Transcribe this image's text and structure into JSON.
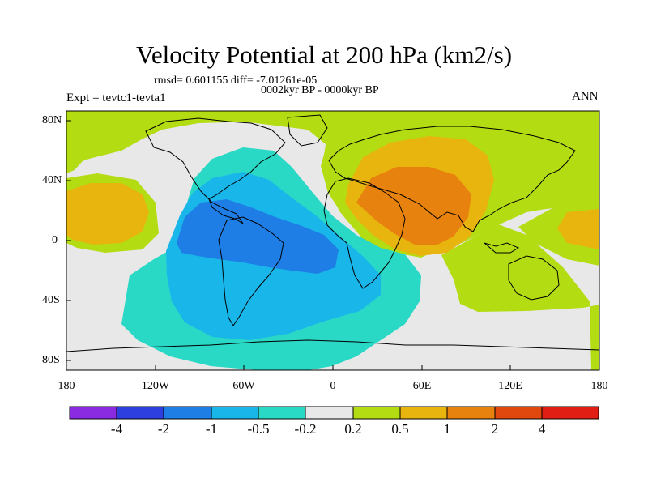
{
  "header": {
    "title": "Velocity Potential at 200 hPa (km2/s)",
    "stats": "rmsd= 0.601155 diff= -7.01261e-05",
    "period": "0002kyr BP - 0000kyr BP",
    "experiment": "Expt = tevtc1-tevta1",
    "season": "ANN"
  },
  "map": {
    "projection": "cylindrical equidistant",
    "x_ticks": [
      "180",
      "120W",
      "60W",
      "0",
      "60E",
      "120E",
      "180"
    ],
    "y_ticks": [
      "80N",
      "40N",
      "0",
      "40S",
      "80S"
    ]
  },
  "colorbar": {
    "labels": [
      "-4",
      "-2",
      "-1",
      "-0.5",
      "-0.2",
      "0.2",
      "0.5",
      "1",
      "2",
      "4"
    ],
    "colors": [
      "#8a2be2",
      "#2e3fe0",
      "#1e7ee6",
      "#19b6ea",
      "#2ad8c6",
      "#e8e8e8",
      "#b4dc12",
      "#e8b40e",
      "#e8820e",
      "#e0480e",
      "#e01e14"
    ]
  }
}
